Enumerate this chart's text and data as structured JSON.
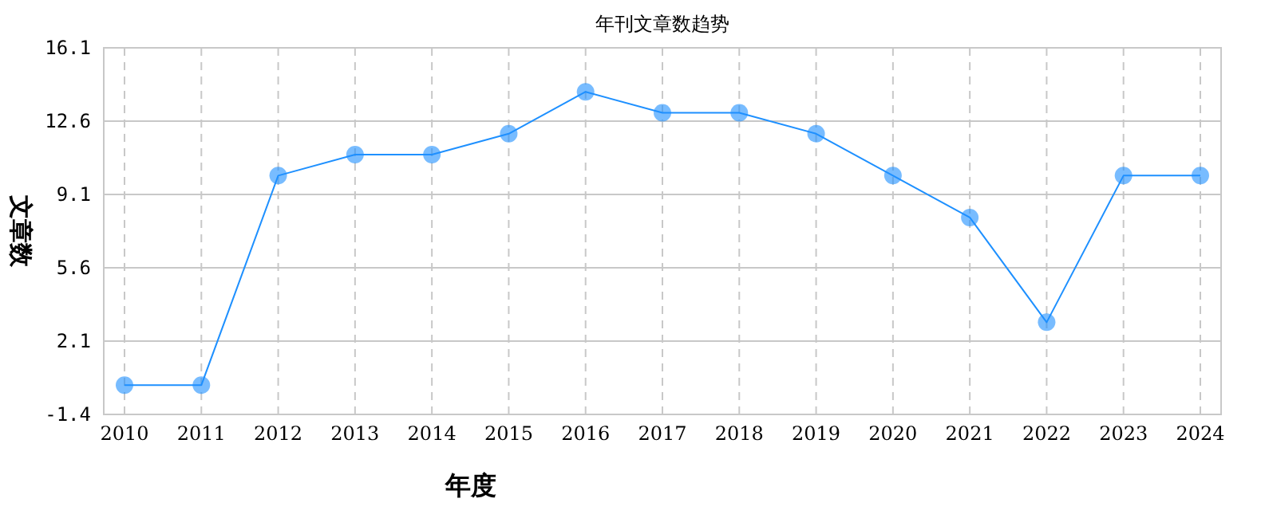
{
  "chart_data": {
    "type": "line",
    "title": "年刊文章数趋势",
    "xlabel": "年度",
    "ylabel": "文章数",
    "categories": [
      "2010",
      "2011",
      "2012",
      "2013",
      "2014",
      "2015",
      "2016",
      "2017",
      "2018",
      "2019",
      "2020",
      "2021",
      "2022",
      "2023",
      "2024"
    ],
    "series": [
      {
        "color": "#1e90ff",
        "values": [
          0,
          0,
          10,
          11,
          11,
          12,
          14,
          13,
          13,
          12,
          10,
          8,
          3,
          10,
          10
        ]
      }
    ],
    "ylim": [
      -1.4,
      16.1
    ],
    "yticks": [
      -1.4,
      2.1,
      5.6,
      9.1,
      12.6,
      16.1
    ],
    "grid": true,
    "marker": "circle",
    "line_style": "solid"
  }
}
